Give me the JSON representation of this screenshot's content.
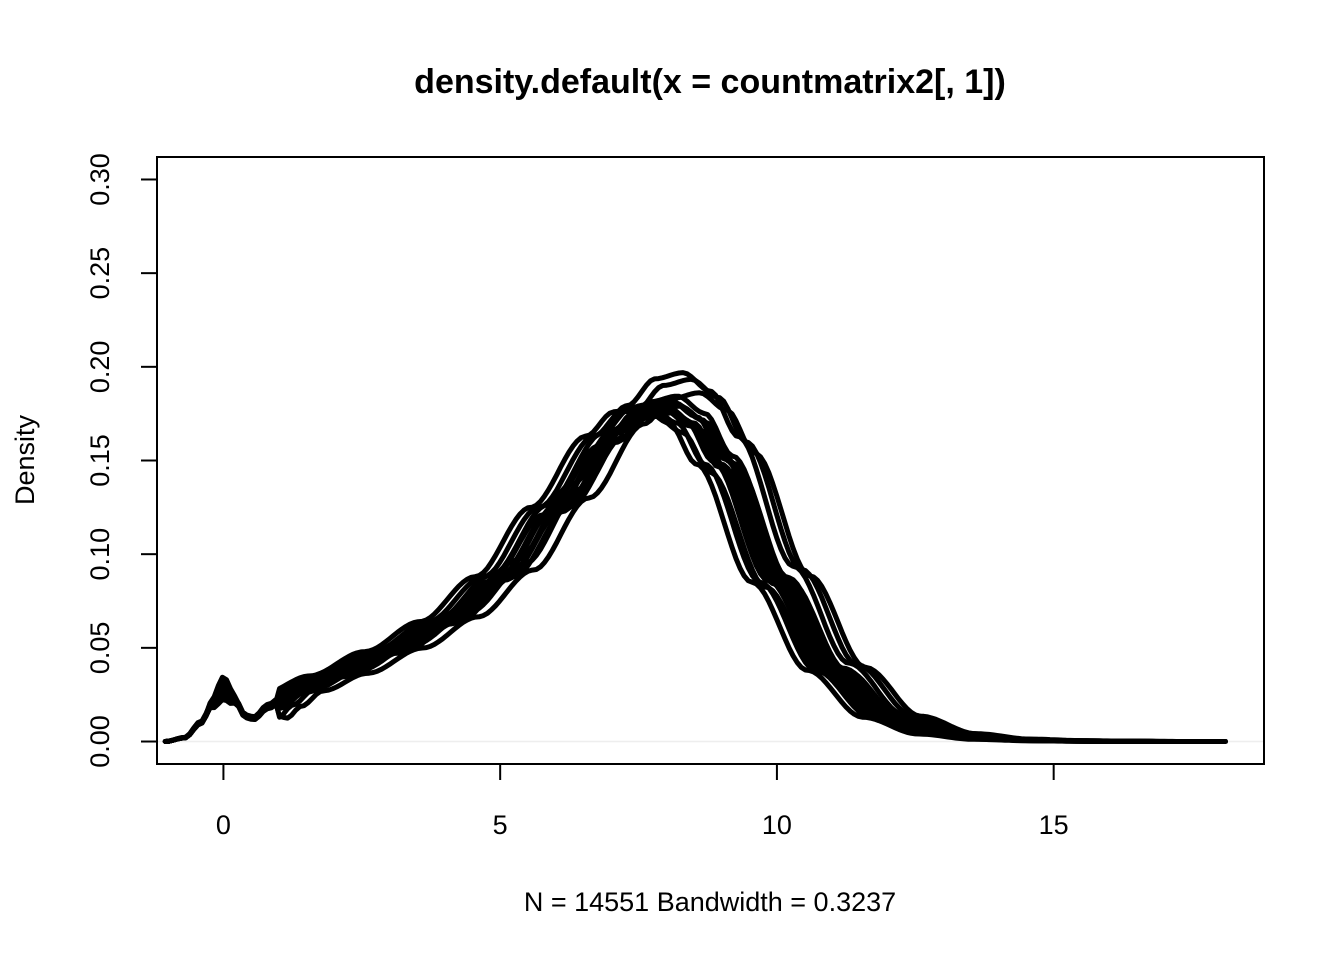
{
  "chart_data": {
    "type": "line",
    "title": "density.default(x = countmatrix2[, 1])",
    "xlabel": "N = 14551   Bandwidth = 0.3237",
    "ylabel": "Density",
    "xlim": [
      -1.2,
      18.8
    ],
    "ylim": [
      -0.012,
      0.312
    ],
    "x_ticks": [
      0,
      5,
      10,
      15
    ],
    "y_ticks": [
      0.0,
      0.05,
      0.1,
      0.15,
      0.2,
      0.25,
      0.3
    ],
    "x_tick_labels": [
      "0",
      "5",
      "10",
      "15"
    ],
    "y_tick_labels": [
      "0.00",
      "0.05",
      "0.10",
      "0.15",
      "0.20",
      "0.25",
      "0.30"
    ],
    "grid": false,
    "legend": "none",
    "line_color": "#000000",
    "zero_line_color": "#eeeeee",
    "series_profile": {
      "x": [
        -1.05,
        -0.7,
        -0.4,
        -0.2,
        0,
        0.2,
        0.4,
        0.55,
        0.8,
        1.2,
        2,
        3,
        4,
        5,
        6,
        7,
        7.5,
        8,
        8.5,
        9,
        10,
        11,
        12,
        13,
        14,
        15,
        16,
        17,
        18.1
      ],
      "y": [
        0.0,
        0.002,
        0.01,
        0.02,
        0.028,
        0.022,
        0.013,
        0.012,
        0.018,
        0.026,
        0.035,
        0.048,
        0.064,
        0.088,
        0.125,
        0.163,
        0.176,
        0.179,
        0.17,
        0.148,
        0.085,
        0.038,
        0.013,
        0.004,
        0.0012,
        0.0004,
        0.0001,
        0.0,
        0.0
      ]
    },
    "series": [
      {
        "shift": -0.3,
        "scale": 1.0,
        "bump": 1.6
      },
      {
        "shift": -0.15,
        "scale": 1.01,
        "bump": 1.2
      },
      {
        "shift": -0.05,
        "scale": 0.99,
        "bump": 0.9
      },
      {
        "shift": 0.0,
        "scale": 1.0,
        "bump": 1.0
      },
      {
        "shift": 0.05,
        "scale": 1.02,
        "bump": 0.7
      },
      {
        "shift": 0.1,
        "scale": 0.98,
        "bump": 1.3
      },
      {
        "shift": 0.2,
        "scale": 1.03,
        "bump": 0.5
      },
      {
        "shift": 0.25,
        "scale": 1.0,
        "bump": 0.8
      },
      {
        "shift": -0.2,
        "scale": 0.97,
        "bump": 1.1
      },
      {
        "shift": 0.15,
        "scale": 1.01,
        "bump": 0.6
      },
      {
        "shift": 0.6,
        "scale": 1.04,
        "bump": 0.4
      },
      {
        "shift": 0.45,
        "scale": 1.08,
        "bump": 0.5
      },
      {
        "shift": 0.3,
        "scale": 1.1,
        "bump": 0.6
      },
      {
        "shift": -0.45,
        "scale": 1.0,
        "bump": 1.5
      }
    ]
  }
}
